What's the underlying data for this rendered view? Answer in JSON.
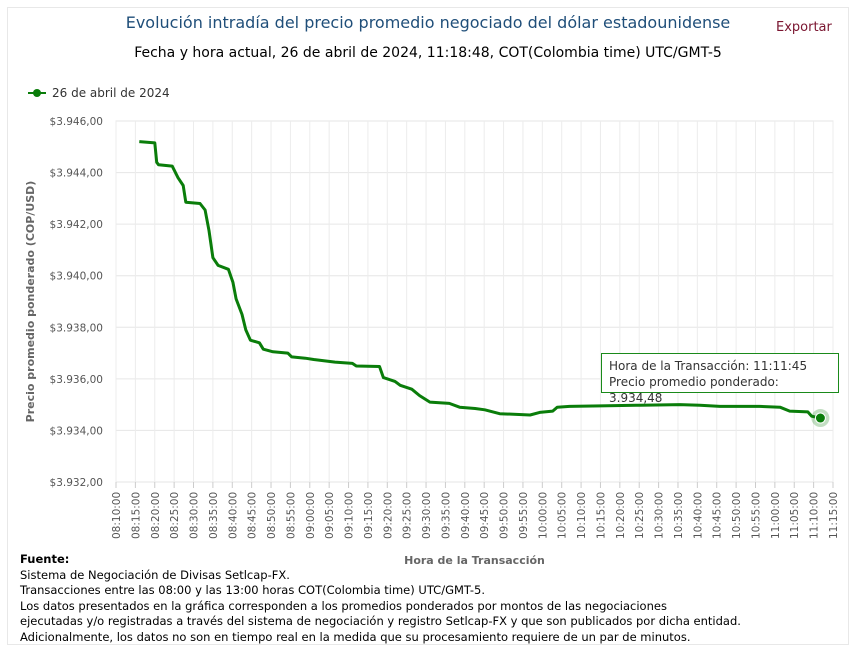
{
  "header": {
    "title": "Evolución intradía del precio promedio negociado del dólar estadounidense",
    "subtitle": "Fecha y hora actual, 26 de abril de 2024, 11:18:48, COT(Colombia time) UTC/GMT-5",
    "export_label": "Exportar"
  },
  "chart_data": {
    "type": "line",
    "xlabel": "Hora de la Transacción",
    "ylabel": "Precio promedio ponderado (COP/USD)",
    "ylim": [
      3932,
      3946
    ],
    "xlim": [
      "08:10:00",
      "11:15:00"
    ],
    "y_ticks": [
      "$3.932,00",
      "$3.934,00",
      "$3.936,00",
      "$3.938,00",
      "$3.940,00",
      "$3.942,00",
      "$3.944,00",
      "$3.946,00"
    ],
    "x_ticks": [
      "08:10:00",
      "08:15:00",
      "08:20:00",
      "08:25:00",
      "08:30:00",
      "08:35:00",
      "08:40:00",
      "08:45:00",
      "08:50:00",
      "08:55:00",
      "09:00:00",
      "09:05:00",
      "09:10:00",
      "09:15:00",
      "09:20:00",
      "09:25:00",
      "09:30:00",
      "09:35:00",
      "09:40:00",
      "09:45:00",
      "09:50:00",
      "09:55:00",
      "10:00:00",
      "10:05:00",
      "10:10:00",
      "10:15:00",
      "10:20:00",
      "10:25:00",
      "10:30:00",
      "10:35:00",
      "10:40:00",
      "10:45:00",
      "10:50:00",
      "10:55:00",
      "11:00:00",
      "11:05:00",
      "11:10:00",
      "11:15:00"
    ],
    "grid": true,
    "legend_position": "top-left",
    "series": [
      {
        "name": "26 de abril de 2024",
        "color": "#0a7d0a",
        "points": [
          [
            "08:16:00",
            3945.2
          ],
          [
            "08:20:00",
            3945.15
          ],
          [
            "08:20:30",
            3944.4
          ],
          [
            "08:21:00",
            3944.3
          ],
          [
            "08:24:30",
            3944.25
          ],
          [
            "08:26:00",
            3943.8
          ],
          [
            "08:27:20",
            3943.5
          ],
          [
            "08:28:00",
            3942.85
          ],
          [
            "08:31:40",
            3942.8
          ],
          [
            "08:33:00",
            3942.55
          ],
          [
            "08:34:00",
            3941.75
          ],
          [
            "08:35:00",
            3940.7
          ],
          [
            "08:36:20",
            3940.4
          ],
          [
            "08:39:00",
            3940.25
          ],
          [
            "08:40:10",
            3939.75
          ],
          [
            "08:41:00",
            3939.1
          ],
          [
            "08:42:30",
            3938.5
          ],
          [
            "08:43:30",
            3937.9
          ],
          [
            "08:44:40",
            3937.5
          ],
          [
            "08:47:00",
            3937.4
          ],
          [
            "08:48:00",
            3937.15
          ],
          [
            "08:50:30",
            3937.05
          ],
          [
            "08:54:20",
            3937.0
          ],
          [
            "08:55:20",
            3936.85
          ],
          [
            "08:58:50",
            3936.8
          ],
          [
            "09:01:00",
            3936.75
          ],
          [
            "09:06:30",
            3936.65
          ],
          [
            "09:11:00",
            3936.6
          ],
          [
            "09:12:00",
            3936.5
          ],
          [
            "09:18:00",
            3936.48
          ],
          [
            "09:19:00",
            3936.05
          ],
          [
            "09:22:00",
            3935.9
          ],
          [
            "09:23:20",
            3935.75
          ],
          [
            "09:26:20",
            3935.6
          ],
          [
            "09:28:20",
            3935.35
          ],
          [
            "09:31:00",
            3935.1
          ],
          [
            "09:36:00",
            3935.05
          ],
          [
            "09:38:40",
            3934.9
          ],
          [
            "09:42:40",
            3934.85
          ],
          [
            "09:45:10",
            3934.8
          ],
          [
            "09:49:00",
            3934.65
          ],
          [
            "09:56:50",
            3934.6
          ],
          [
            "09:59:20",
            3934.7
          ],
          [
            "10:02:40",
            3934.75
          ],
          [
            "10:03:50",
            3934.9
          ],
          [
            "10:07:00",
            3934.93
          ],
          [
            "10:15:00",
            3934.95
          ],
          [
            "10:25:10",
            3934.98
          ],
          [
            "10:35:30",
            3935.0
          ],
          [
            "10:40:40",
            3934.98
          ],
          [
            "10:45:50",
            3934.93
          ],
          [
            "10:56:00",
            3934.93
          ],
          [
            "11:01:20",
            3934.9
          ],
          [
            "11:03:50",
            3934.75
          ],
          [
            "11:08:30",
            3934.72
          ],
          [
            "11:09:30",
            3934.55
          ],
          [
            "11:11:45",
            3934.48
          ]
        ]
      }
    ],
    "tooltip": {
      "line1": "Hora de la Transacción: 11:11:45",
      "line2": "Precio promedio ponderado: 3.934,48"
    }
  },
  "footer": {
    "heading": "Fuente:",
    "lines": [
      "Sistema de Negociación de Divisas Setlcap-FX.",
      "Transacciones entre las 08:00 y las 13:00 horas COT(Colombia time) UTC/GMT-5.",
      "Los datos presentados en la gráfica corresponden a los promedios ponderados por montos de las negociaciones",
      "ejecutadas y/o registradas a través del sistema de negociación y registro Setlcap-FX y que son publicados por dicha entidad.",
      "Adicionalmente, los datos no son en tiempo real en la medida que su procesamiento requiere de un par de minutos."
    ]
  }
}
